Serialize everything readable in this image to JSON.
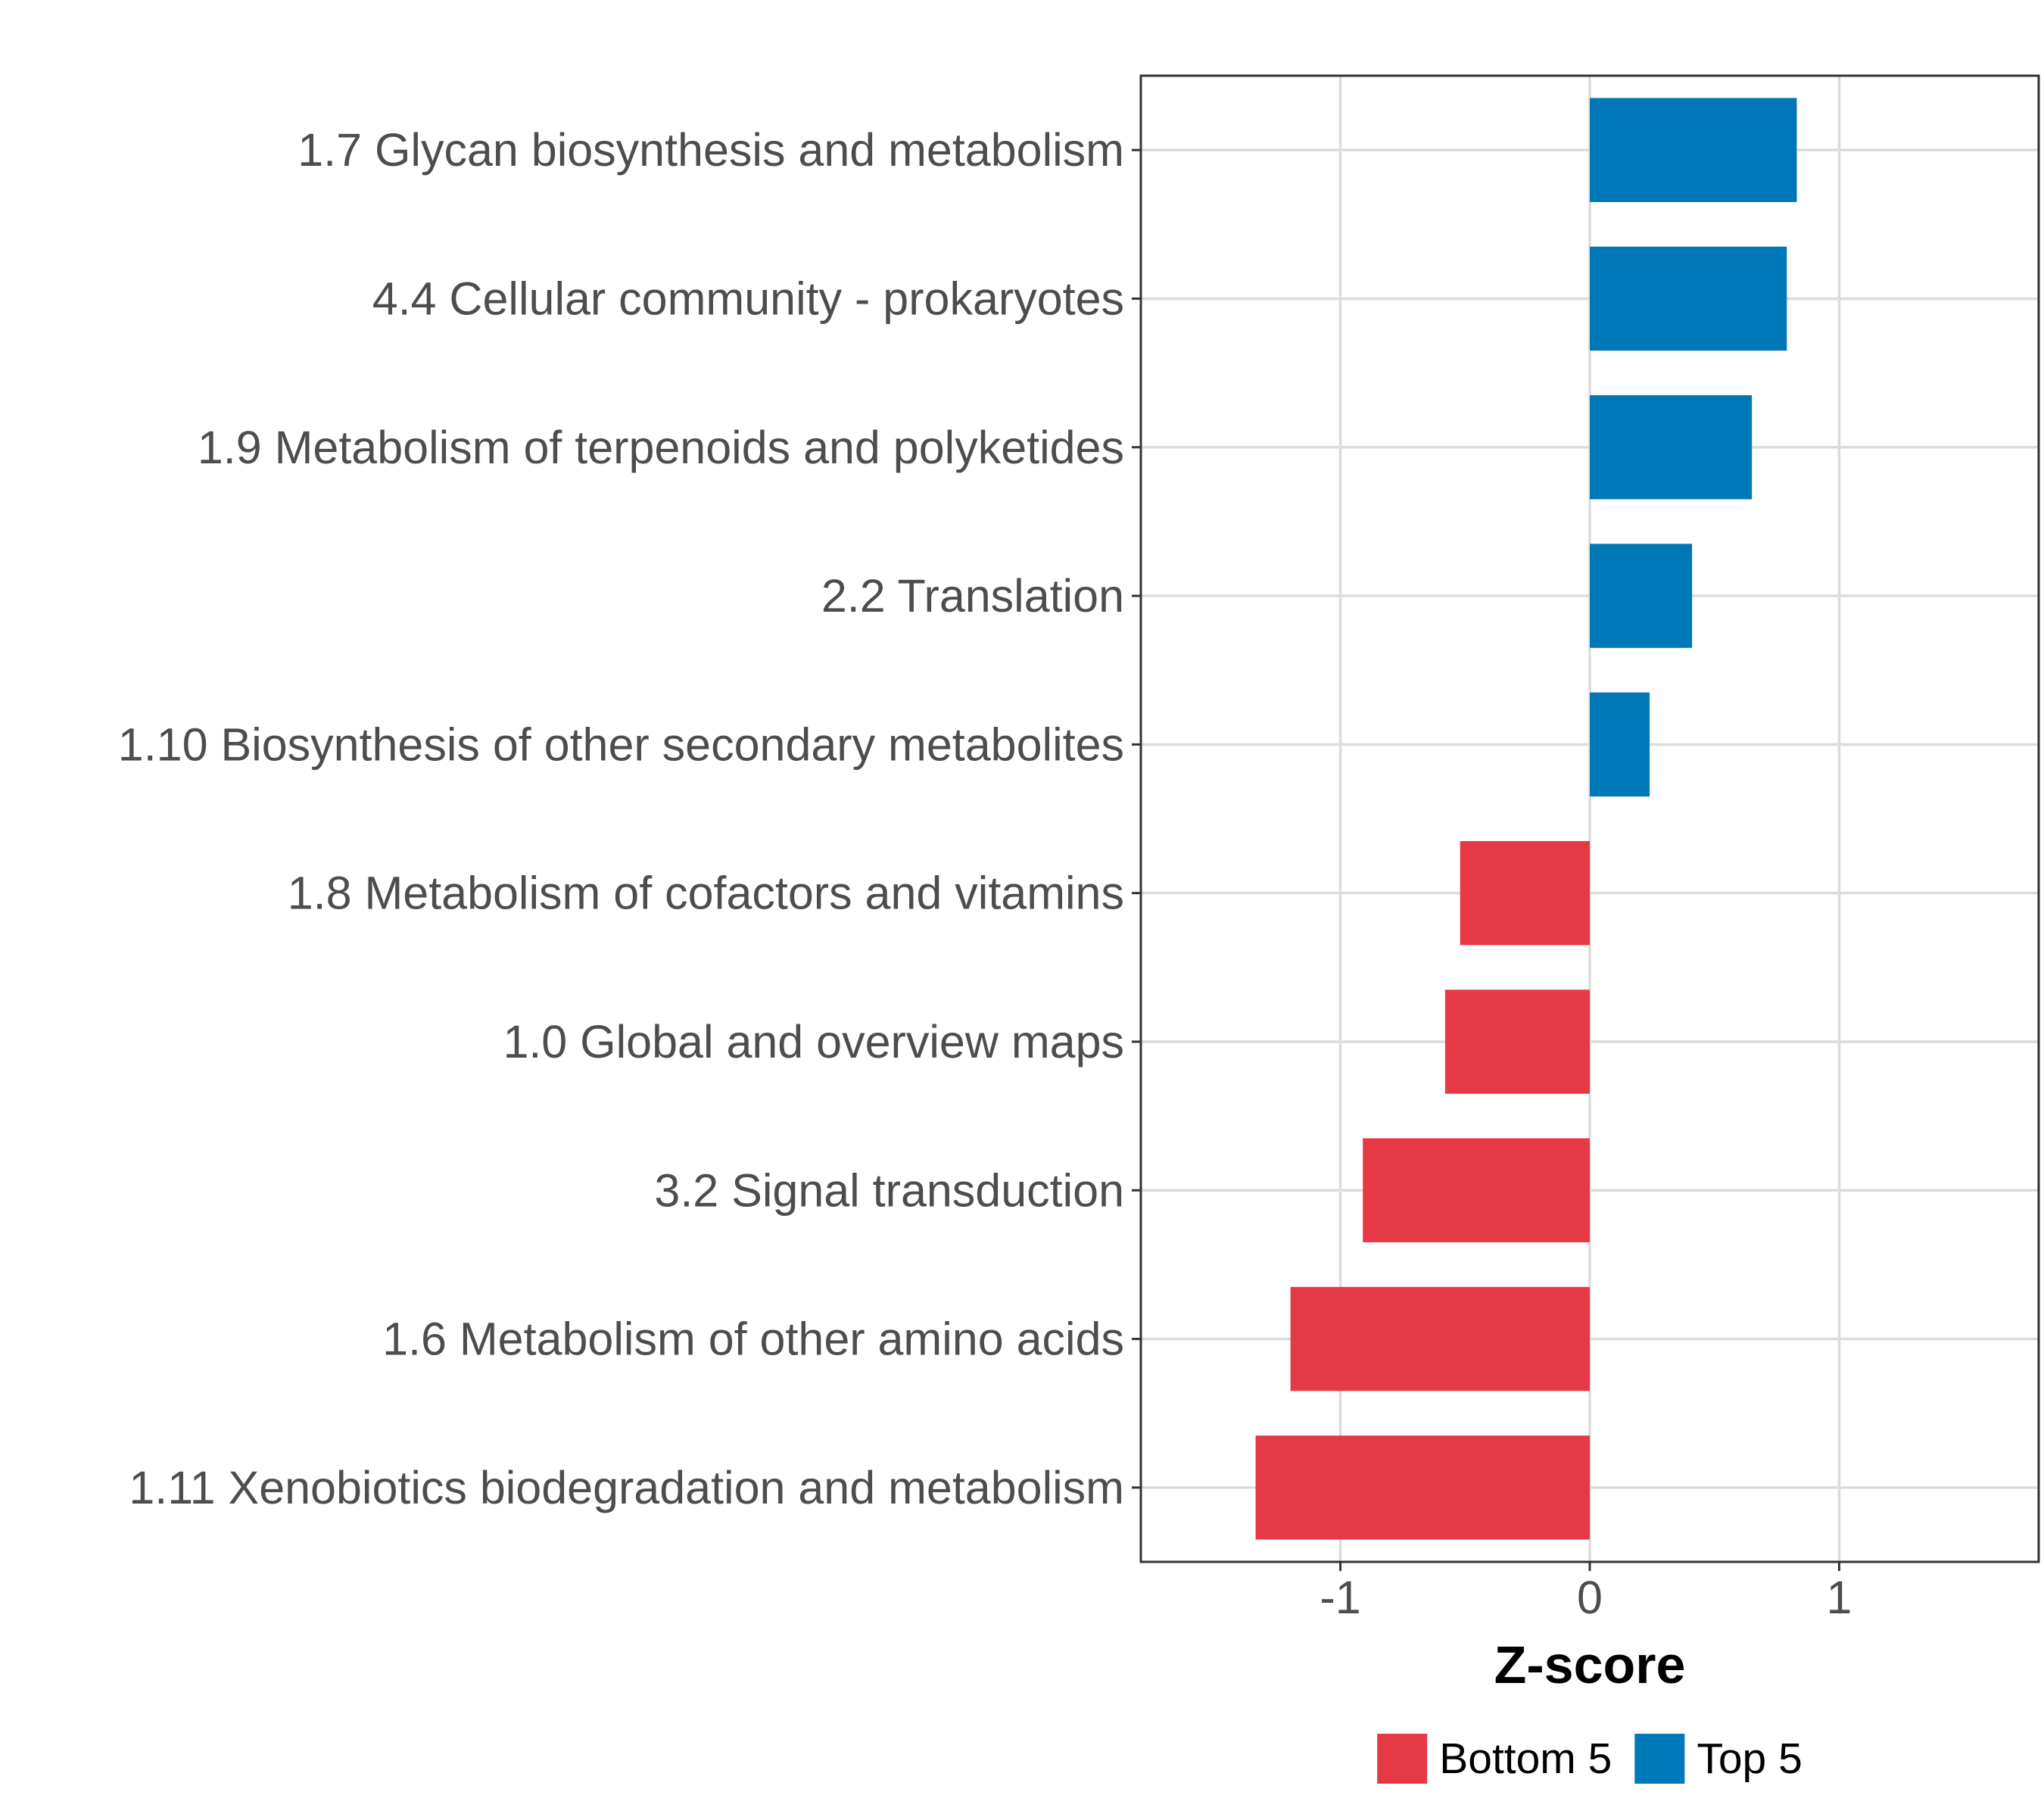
{
  "chart_data": {
    "type": "bar",
    "orientation": "horizontal",
    "categories": [
      "1.7 Glycan biosynthesis and metabolism",
      "4.4 Cellular community - prokaryotes",
      "1.9 Metabolism of terpenoids and polyketides",
      "2.2 Translation",
      "1.10 Biosynthesis of other secondary metabolites",
      "1.8 Metabolism of cofactors and vitamins",
      "1.0 Global and overview maps",
      "3.2 Signal transduction",
      "1.6 Metabolism of other amino acids",
      "1.11 Xenobiotics biodegradation and metabolism"
    ],
    "values": [
      0.83,
      0.79,
      0.65,
      0.41,
      0.24,
      -0.52,
      -0.58,
      -0.91,
      -1.2,
      -1.34
    ],
    "groups": [
      "Top 5",
      "Top 5",
      "Top 5",
      "Top 5",
      "Top 5",
      "Bottom 5",
      "Bottom 5",
      "Bottom 5",
      "Bottom 5",
      "Bottom 5"
    ],
    "xlabel": "Z-score",
    "ylabel": "",
    "xlim": [
      -1.8,
      1.8
    ],
    "xticks": [
      -1,
      0,
      1
    ],
    "xtick_labels": [
      "-1",
      "0",
      "1"
    ],
    "grid": true,
    "legend": {
      "position": "bottom",
      "entries": [
        {
          "label": "Bottom 5",
          "color": "#E63946"
        },
        {
          "label": "Top 5",
          "color": "#0077B6"
        }
      ]
    },
    "colors": {
      "Bottom 5": "#E63946",
      "Top 5": "#0077B6"
    }
  }
}
